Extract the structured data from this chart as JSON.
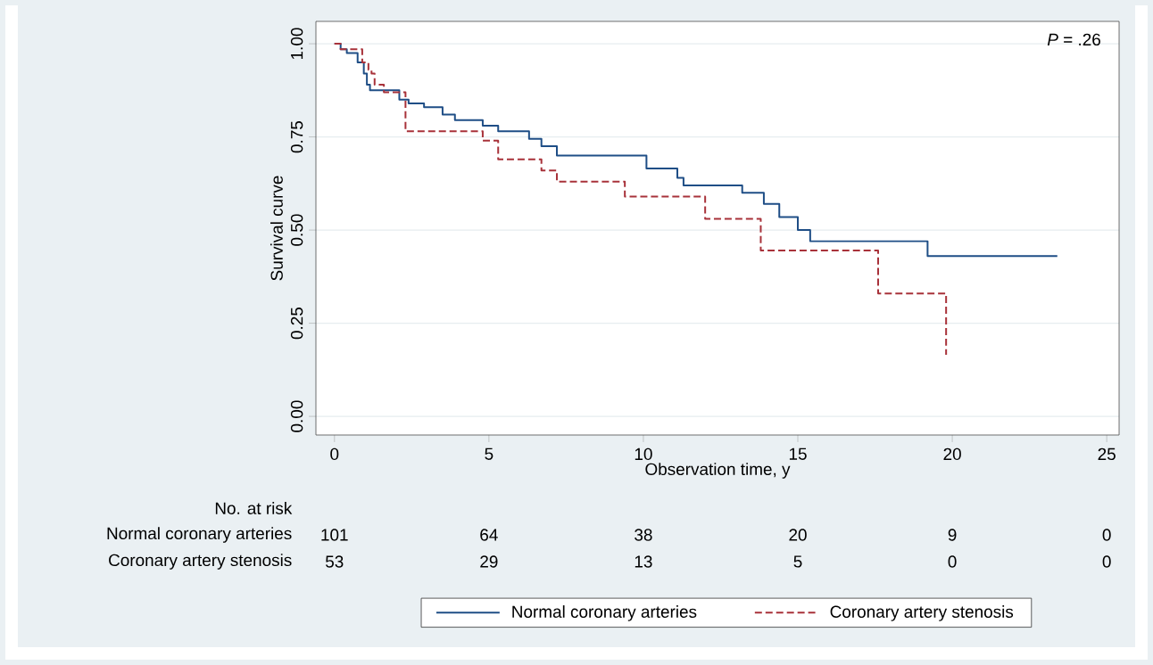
{
  "chart_data": {
    "type": "step",
    "xlabel": "Observation time, y",
    "ylabel": "Survival curve",
    "xlim": [
      -0.6,
      25.4
    ],
    "ylim": [
      -0.05,
      1.06
    ],
    "xticks": [
      0,
      5,
      10,
      15,
      20,
      25
    ],
    "yticks": [
      {
        "value": 0,
        "label": "0.00"
      },
      {
        "value": 0.25,
        "label": "0.25"
      },
      {
        "value": 0.5,
        "label": "0.50"
      },
      {
        "value": 0.75,
        "label": "0.75"
      },
      {
        "value": 1,
        "label": "1.00"
      }
    ],
    "grid": "y",
    "legend": "bottom",
    "series": [
      {
        "name": "Normal coronary arteries",
        "color": "#1f4e86",
        "line_style": "solid",
        "x": [
          0,
          0.2,
          0.4,
          0.75,
          0.95,
          1.05,
          1.15,
          2.1,
          2.4,
          2.9,
          3.5,
          3.9,
          4.8,
          5.3,
          6.3,
          6.7,
          7.2,
          10.1,
          11.1,
          11.3,
          13.2,
          13.9,
          14.4,
          15.0,
          15.4,
          19.2,
          23.4
        ],
        "values": [
          1.0,
          0.985,
          0.975,
          0.95,
          0.92,
          0.89,
          0.875,
          0.85,
          0.84,
          0.83,
          0.81,
          0.795,
          0.78,
          0.765,
          0.745,
          0.725,
          0.7,
          0.665,
          0.64,
          0.62,
          0.6,
          0.57,
          0.535,
          0.5,
          0.47,
          0.43,
          0.43
        ]
      },
      {
        "name": "Coronary artery stenosis",
        "color": "#a8323a",
        "line_style": "dashed",
        "x": [
          0,
          0.2,
          0.9,
          1.1,
          1.2,
          1.3,
          1.6,
          2.3,
          4.8,
          5.3,
          6.7,
          7.2,
          9.4,
          12.0,
          13.8,
          17.6,
          19.8
        ],
        "values": [
          1.0,
          0.985,
          0.95,
          0.93,
          0.92,
          0.89,
          0.87,
          0.765,
          0.74,
          0.69,
          0.66,
          0.63,
          0.59,
          0.53,
          0.445,
          0.33,
          0.165
        ]
      }
    ],
    "annotations": [
      "*P* = .26",
      "No. at risk",
      "Normal coronary arteries",
      "101",
      "64",
      "38",
      "20",
      "9",
      "0",
      "Coronary artery stenosis",
      "53",
      "29",
      "13",
      "5",
      "0",
      "0"
    ]
  }
}
